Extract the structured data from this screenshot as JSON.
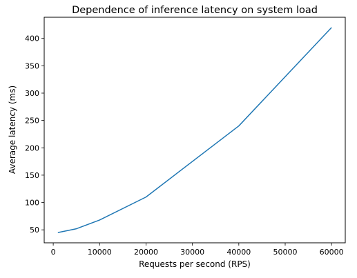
{
  "chart_data": {
    "type": "line",
    "title": "Dependence of inference latency on system load",
    "xlabel": "Requests per second (RPS)",
    "ylabel": "Average latency (ms)",
    "xlim": [
      -1950,
      62950
    ],
    "ylim": [
      26.25,
      438.75
    ],
    "xticks": [
      0,
      10000,
      20000,
      30000,
      40000,
      50000,
      60000
    ],
    "yticks": [
      50,
      100,
      150,
      200,
      250,
      300,
      350,
      400
    ],
    "grid": false,
    "series": [
      {
        "color": "#1f77b4",
        "x": [
          1000,
          5000,
          10000,
          20000,
          40000,
          60000
        ],
        "y": [
          45,
          52,
          68,
          110,
          240,
          420
        ]
      }
    ]
  }
}
